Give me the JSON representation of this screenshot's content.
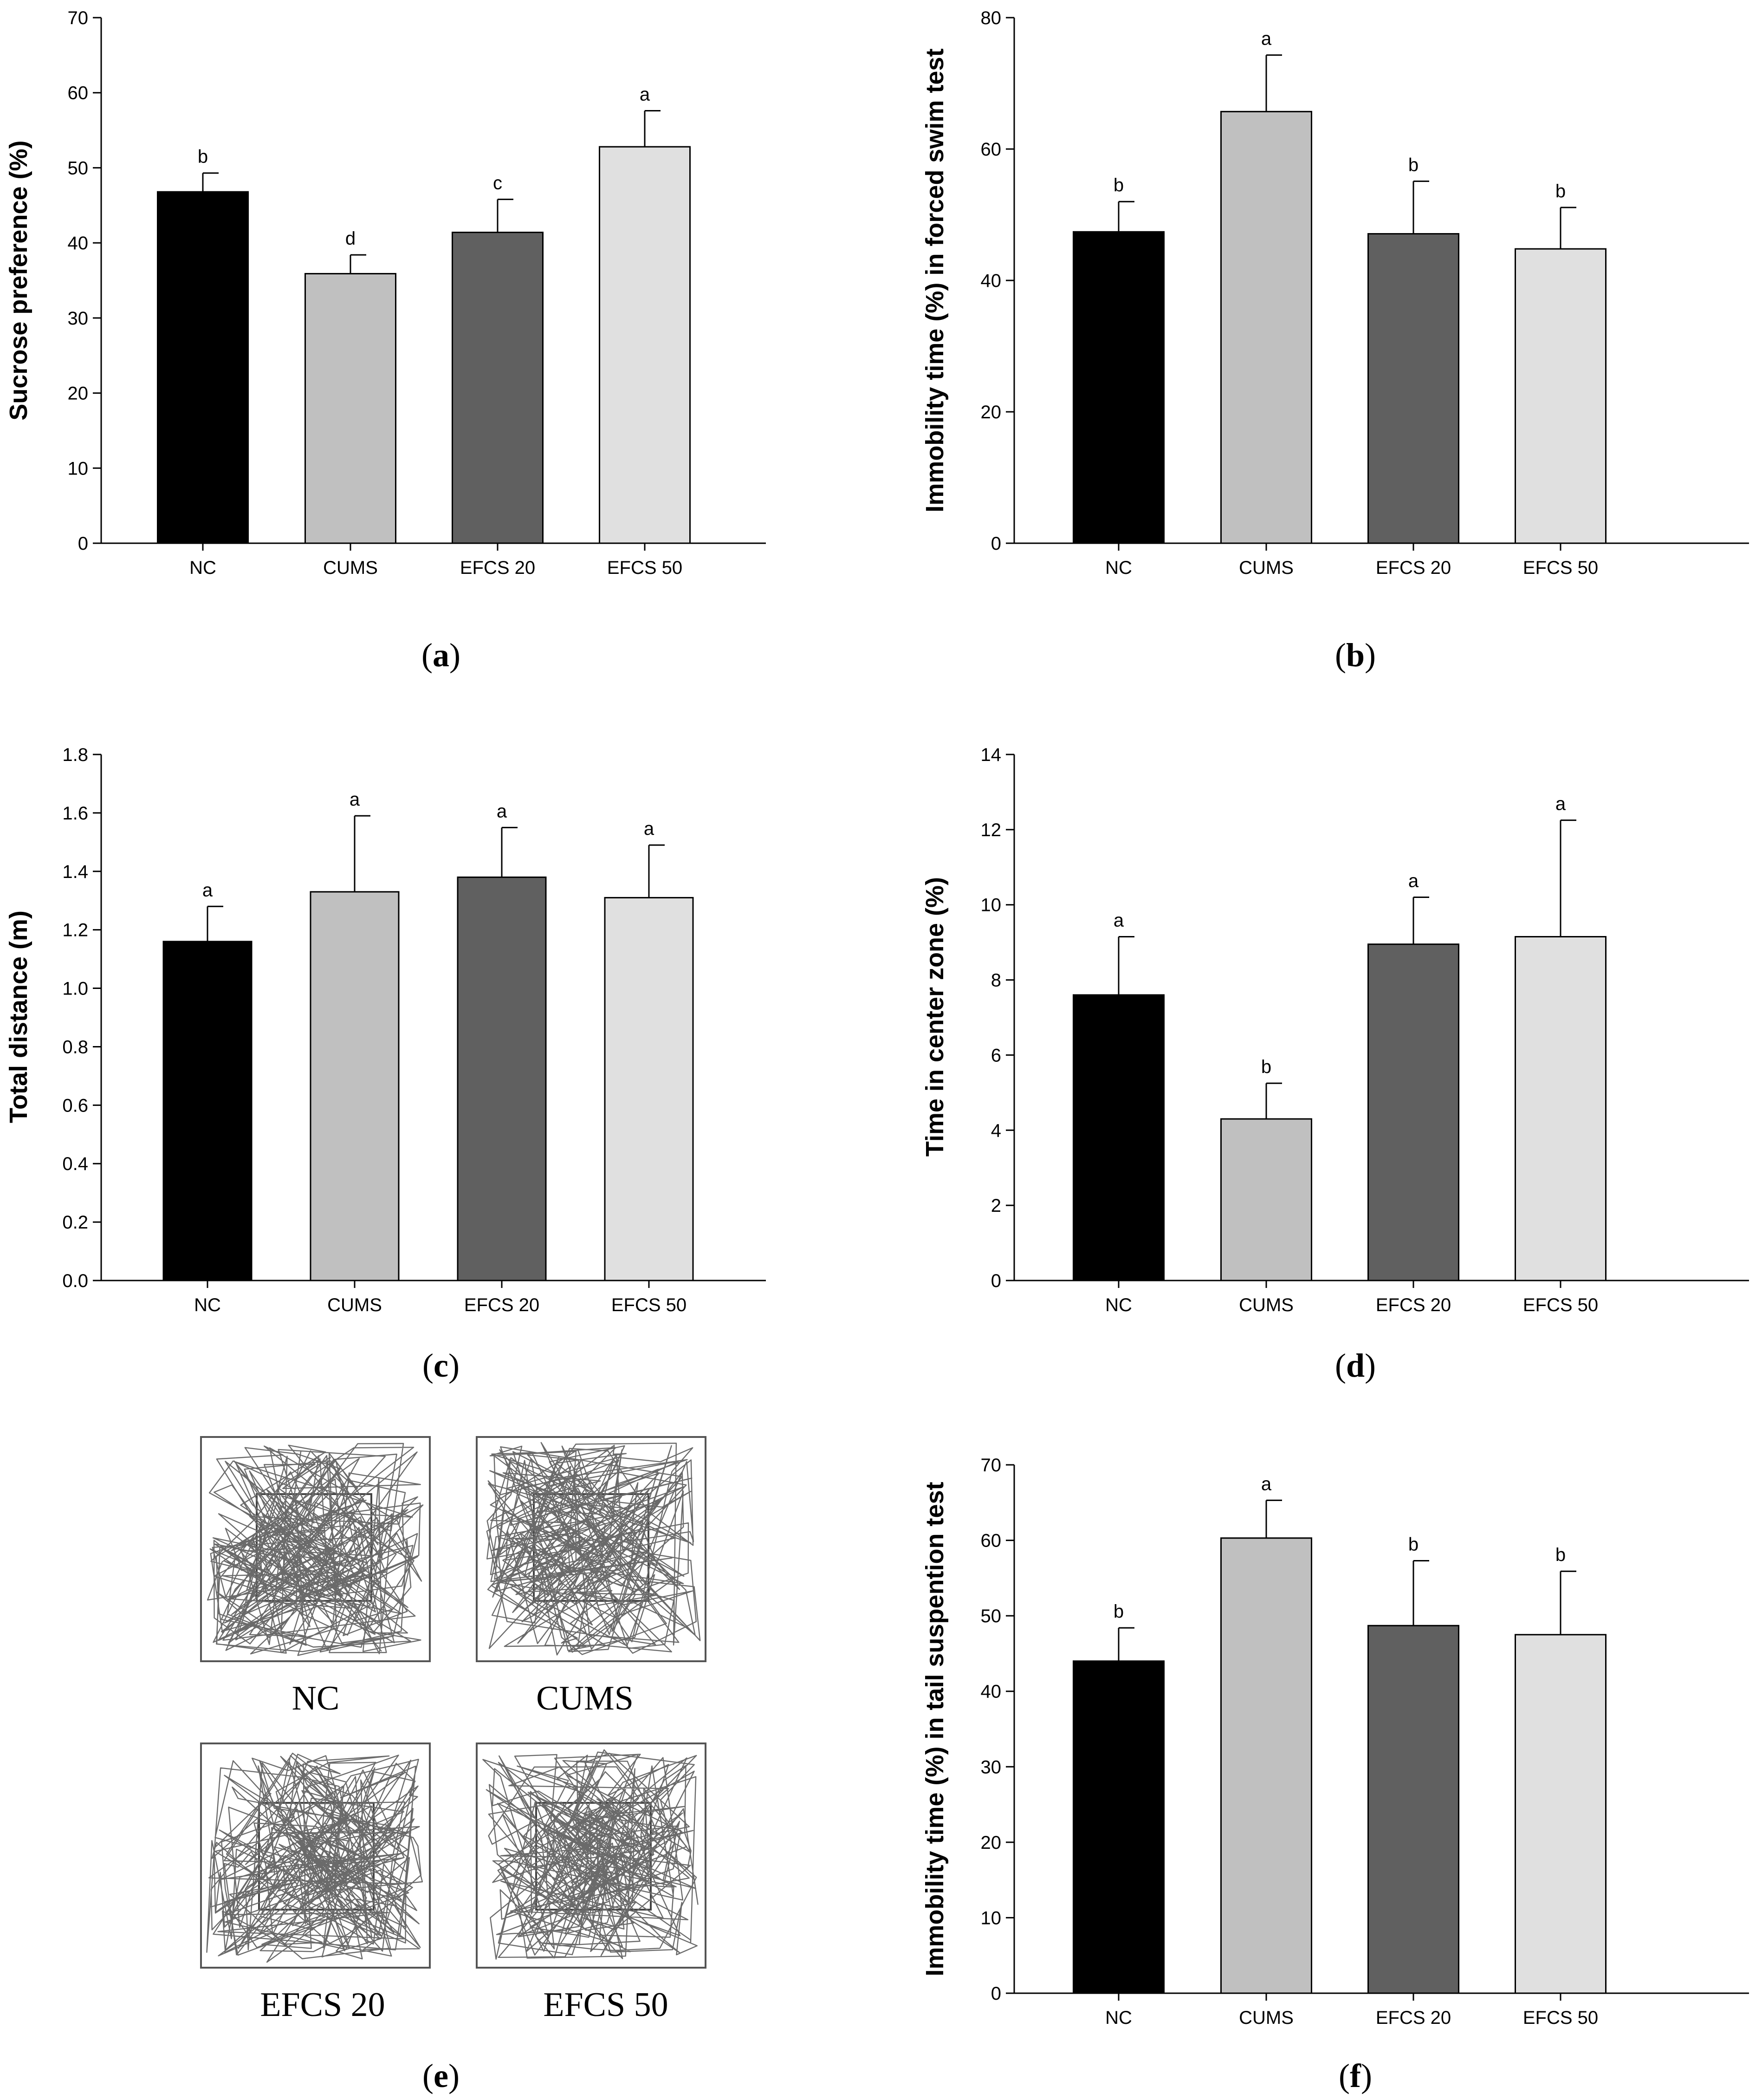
{
  "colors": {
    "NC": "#000000",
    "CUMS": "#c0c0c0",
    "EFCS 20": "#606060",
    "EFCS 50": "#e0e0e0"
  },
  "chart_data": [
    {
      "panel": "a",
      "type": "bar",
      "categories": [
        "NC",
        "CUMS",
        "EFCS 20",
        "EFCS 50"
      ],
      "values": [
        46.8,
        35.9,
        41.4,
        52.8
      ],
      "errors": [
        2.5,
        2.5,
        4.4,
        4.8
      ],
      "significance": [
        "b",
        "d",
        "c",
        "a"
      ],
      "ylabel": "Sucrose preference (%)",
      "ylim": [
        0,
        70
      ],
      "yticks": [
        "0",
        "10",
        "20",
        "30",
        "40",
        "50",
        "60",
        "70"
      ],
      "ytick_values": [
        0,
        10,
        20,
        30,
        40,
        50,
        60,
        70
      ]
    },
    {
      "panel": "b",
      "type": "bar",
      "categories": [
        "NC",
        "CUMS",
        "EFCS 20",
        "EFCS 50"
      ],
      "values": [
        47.4,
        65.7,
        47.1,
        44.8
      ],
      "errors": [
        4.6,
        8.6,
        8.0,
        6.3
      ],
      "significance": [
        "b",
        "a",
        "b",
        "b"
      ],
      "ylabel": "Immobility time (%) in forced swim test",
      "ylim": [
        0,
        80
      ],
      "yticks": [
        "0",
        "20",
        "40",
        "60",
        "80"
      ],
      "ytick_values": [
        0,
        20,
        40,
        60,
        80
      ]
    },
    {
      "panel": "c",
      "type": "bar",
      "categories": [
        "NC",
        "CUMS",
        "EFCS 20",
        "EFCS 50"
      ],
      "values": [
        1.16,
        1.33,
        1.38,
        1.31
      ],
      "errors": [
        0.12,
        0.26,
        0.17,
        0.18
      ],
      "significance": [
        "a",
        "a",
        "a",
        "a"
      ],
      "ylabel": "Total distance (m)",
      "ylim": [
        0,
        1.8
      ],
      "yticks": [
        "0.0",
        "0.2",
        "0.4",
        "0.6",
        "0.8",
        "1.0",
        "1.2",
        "1.4",
        "1.6",
        "1.8"
      ],
      "ytick_values": [
        0,
        0.2,
        0.4,
        0.6,
        0.8,
        1.0,
        1.2,
        1.4,
        1.6,
        1.8
      ]
    },
    {
      "panel": "d",
      "type": "bar",
      "categories": [
        "NC",
        "CUMS",
        "EFCS 20",
        "EFCS 50"
      ],
      "values": [
        7.6,
        4.3,
        8.95,
        9.15
      ],
      "errors": [
        1.55,
        0.95,
        1.25,
        3.1
      ],
      "significance": [
        "a",
        "b",
        "a",
        "a"
      ],
      "ylabel": "Time in center zone (%)",
      "ylim": [
        0,
        14
      ],
      "yticks": [
        "0",
        "2",
        "4",
        "6",
        "8",
        "10",
        "12",
        "14"
      ],
      "ytick_values": [
        0,
        2,
        4,
        6,
        8,
        10,
        12,
        14
      ]
    },
    {
      "panel": "f",
      "type": "bar",
      "categories": [
        "NC",
        "CUMS",
        "EFCS 20",
        "EFCS 50"
      ],
      "values": [
        44.0,
        60.3,
        48.7,
        47.5
      ],
      "errors": [
        4.4,
        5.0,
        8.6,
        8.4
      ],
      "significance": [
        "b",
        "a",
        "b",
        "b"
      ],
      "ylabel": "Immobility time (%) in tail suspention test",
      "ylim": [
        0,
        70
      ],
      "yticks": [
        "0",
        "10",
        "20",
        "30",
        "40",
        "50",
        "60",
        "70"
      ],
      "ytick_values": [
        0,
        10,
        20,
        30,
        40,
        50,
        60,
        70
      ]
    }
  ],
  "panel_e": {
    "tracks": [
      "NC",
      "CUMS",
      "EFCS 20",
      "EFCS 50"
    ]
  },
  "panel_labels": {
    "a": "a",
    "b": "b",
    "c": "c",
    "d": "d",
    "e": "e",
    "f": "f",
    "open": "(",
    "close": ")"
  }
}
